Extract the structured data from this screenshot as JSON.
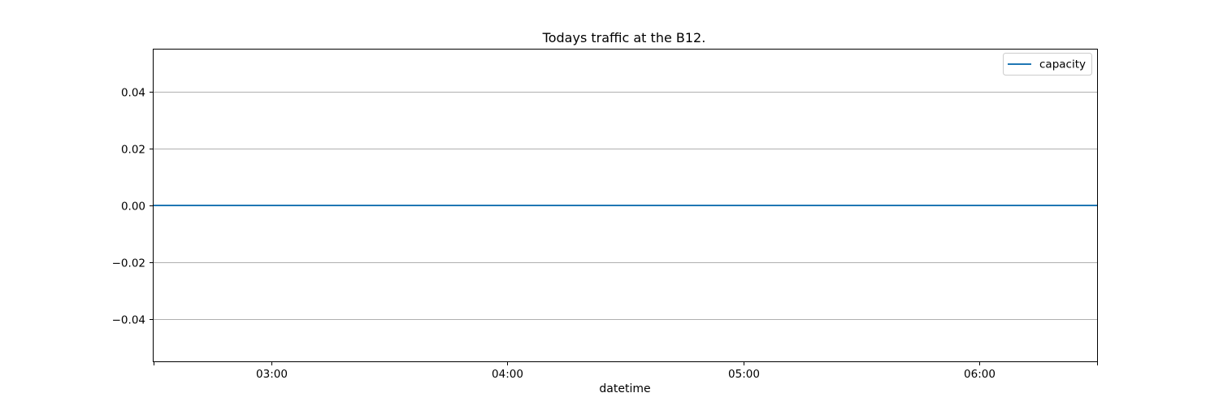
{
  "chart_data": {
    "type": "line",
    "title": "Todays traffic at the B12.",
    "xlabel": "datetime",
    "ylabel": "",
    "x_ticks": [
      "03:00",
      "04:00",
      "05:00",
      "06:00"
    ],
    "x_tick_values": [
      "03:00",
      "04:00",
      "05:00",
      "06:00"
    ],
    "x_range": [
      "02:30",
      "06:30"
    ],
    "xlim": [
      "02:30",
      "06:30"
    ],
    "y_ticks": [
      0.04,
      0.02,
      0.0,
      -0.02,
      -0.04
    ],
    "y_tick_labels": [
      "0.04",
      "0.02",
      "0.00",
      "−0.02",
      "−0.04"
    ],
    "ylim": [
      -0.055,
      0.055
    ],
    "grid": "horizontal",
    "legend_position": "top-right",
    "series": [
      {
        "name": "capacity",
        "color": "#1f77b4",
        "x": [
          "02:30",
          "06:30"
        ],
        "values": [
          0,
          0
        ]
      }
    ]
  }
}
